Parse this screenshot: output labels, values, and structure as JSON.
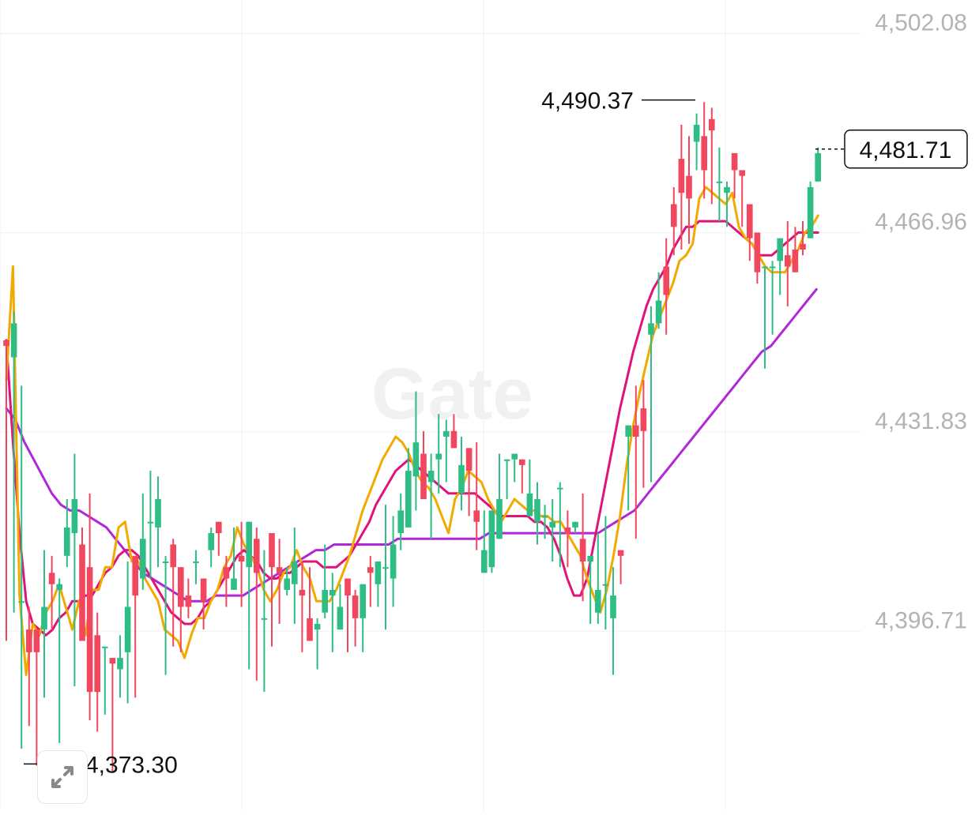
{
  "watermark": "Gate",
  "colors": {
    "up": "#2ebd85",
    "down": "#f0475e",
    "ma_fast": "#f2a900",
    "ma_mid": "#e0137a",
    "ma_slow": "#b026d9",
    "grid": "#f0f0f0",
    "axis_text": "#b3b3b3"
  },
  "icons": {
    "expand": "expand-arrows-icon"
  },
  "chart_data": {
    "type": "candlestick",
    "ylim": [
      4365,
      4508
    ],
    "y_ticks": [
      {
        "value": 4502.08,
        "label": "4,502.08"
      },
      {
        "value": 4466.96,
        "label": "4,466.96"
      },
      {
        "value": 4431.83,
        "label": "4,431.83"
      },
      {
        "value": 4396.71,
        "label": "4,396.71"
      }
    ],
    "high_marker": {
      "value": 4490.37,
      "label": "4,490.37"
    },
    "low_marker": {
      "value": 4373.3,
      "label": "4,373.30"
    },
    "last_price": {
      "value": 4481.71,
      "label": "4,481.71"
    },
    "candles": [
      [
        4448,
        4447,
        4441,
        4395
      ],
      [
        4445,
        4451,
        4453,
        4400
      ],
      [
        4402,
        4402,
        4440,
        4376
      ],
      [
        4397,
        4393,
        4401,
        4380
      ],
      [
        4397,
        4393,
        4392,
        4373
      ],
      [
        4397,
        4401,
        4411,
        4385
      ],
      [
        4407,
        4405,
        4410,
        4397
      ],
      [
        4404,
        4405,
        4406,
        4377
      ],
      [
        4410,
        4415,
        4420,
        4408
      ],
      [
        4414,
        4420,
        4428,
        4387
      ],
      [
        4412,
        4395,
        4415,
        4395
      ],
      [
        4408,
        4386,
        4421,
        4381
      ],
      [
        4396,
        4386,
        4400,
        4379
      ],
      [
        4394,
        4394,
        4388,
        4382
      ],
      [
        4392,
        4391,
        4390,
        4372
      ],
      [
        4390,
        4392,
        4396,
        4385
      ],
      [
        4393,
        4401,
        4409,
        4384
      ],
      [
        4410,
        4403,
        4410,
        4385
      ],
      [
        4406,
        4413,
        4421,
        4404
      ],
      [
        4416,
        4416,
        4425,
        4406
      ],
      [
        4415,
        4420,
        4424,
        4408
      ],
      [
        4409,
        4409,
        4410,
        4389
      ],
      [
        4412,
        4408,
        4413,
        4394
      ],
      [
        4408,
        4401,
        4406,
        4393
      ],
      [
        4403,
        4401,
        4406,
        4399
      ],
      [
        4409,
        4409,
        4411,
        4405
      ],
      [
        4406,
        4402,
        4402,
        4397
      ],
      [
        4411,
        4414,
        4415,
        4408
      ],
      [
        4416,
        4414,
        4411,
        4410
      ],
      [
        4408,
        4406,
        4410,
        4401
      ],
      [
        4404,
        4406,
        4415,
        4404
      ],
      [
        4410,
        4409,
        4416,
        4401
      ],
      [
        4408,
        4416,
        4407,
        4390
      ],
      [
        4413,
        4407,
        4415,
        4388
      ],
      [
        4399,
        4399,
        4411,
        4386
      ],
      [
        4414,
        4408,
        4412,
        4394
      ],
      [
        4408,
        4407,
        4413,
        4398
      ],
      [
        4404,
        4406,
        4408,
        4403
      ],
      [
        4405,
        4409,
        4415,
        4398
      ],
      [
        4404,
        4403,
        4409,
        4393
      ],
      [
        4399,
        4395,
        4408,
        4399
      ],
      [
        4397,
        4398,
        4399,
        4390
      ],
      [
        4400,
        4404,
        4412,
        4399
      ],
      [
        4403,
        4404,
        4407,
        4393
      ],
      [
        4397,
        4401,
        4405,
        4400
      ],
      [
        4406,
        4403,
        4406,
        4393
      ],
      [
        4403,
        4399,
        4404,
        4394
      ],
      [
        4399,
        4405,
        4405,
        4393
      ],
      [
        4408,
        4407,
        4410,
        4401
      ],
      [
        4405,
        4409,
        4409,
        4401
      ],
      [
        4408,
        4408,
        4419,
        4397
      ],
      [
        4406,
        4412,
        4417,
        4401
      ],
      [
        4414,
        4418,
        4421,
        4411
      ],
      [
        4415,
        4425,
        4429,
        4416
      ],
      [
        4424,
        4430,
        4439,
        4418
      ],
      [
        4428,
        4420,
        4432,
        4420
      ],
      [
        4423,
        4425,
        4428,
        4413
      ],
      [
        4427,
        4428,
        4435,
        4421
      ],
      [
        4431,
        4432,
        4434,
        4423
      ],
      [
        4432,
        4429,
        4435,
        4429
      ],
      [
        4421,
        4426,
        4431,
        4418
      ],
      [
        4429,
        4425,
        4428,
        4417
      ],
      [
        4418,
        4416,
        4430,
        4411
      ],
      [
        4407,
        4411,
        4418,
        4407
      ],
      [
        4408,
        4418,
        4418,
        4407
      ],
      [
        4413,
        4420,
        4428,
        4417
      ],
      [
        4427,
        4427,
        4427,
        4420
      ],
      [
        4427,
        4428,
        4428,
        4423
      ],
      [
        4427,
        4426,
        4426,
        4421
      ],
      [
        4417,
        4421,
        4427,
        4417
      ],
      [
        4416,
        4420,
        4423,
        4412
      ],
      [
        4417,
        4417,
        4419,
        4413
      ],
      [
        4415,
        4416,
        4420,
        4409
      ],
      [
        4422,
        4422,
        4423,
        4408
      ],
      [
        4415,
        4414,
        4418,
        4408
      ],
      [
        4415,
        4416,
        4416,
        4414
      ],
      [
        4413,
        4409,
        4421,
        4402
      ],
      [
        4409,
        4410,
        4410,
        4398
      ],
      [
        4400,
        4404,
        4414,
        4398
      ],
      [
        4405,
        4405,
        4417,
        4397
      ],
      [
        4399,
        4403,
        4408,
        4389
      ],
      [
        4411,
        4410,
        4411,
        4405
      ],
      [
        4431,
        4433,
        4433,
        4418
      ],
      [
        4433,
        4431,
        4440,
        4413
      ],
      [
        4436,
        4432,
        4441,
        4422
      ],
      [
        4449,
        4451,
        4454,
        4423
      ],
      [
        4451,
        4455,
        4460,
        4450
      ],
      [
        4461,
        4456,
        4466,
        4449
      ],
      [
        4472,
        4468,
        4475,
        4463
      ],
      [
        4480,
        4474,
        4486,
        4464
      ],
      [
        4477,
        4473,
        4484,
        4465
      ],
      [
        4483,
        4486,
        4488,
        4478
      ],
      [
        4484,
        4478,
        4490,
        4473
      ],
      [
        4487,
        4485,
        4489,
        4472
      ],
      [
        4476,
        4476,
        4482,
        4469
      ],
      [
        4474,
        4475,
        4476,
        4468
      ],
      [
        4481,
        4478,
        4478,
        4473
      ],
      [
        4478,
        4477,
        4478,
        4468
      ],
      [
        4472,
        4466,
        4472,
        4462
      ],
      [
        4467,
        4460,
        4465,
        4458
      ],
      [
        4461,
        4461,
        4458,
        4443
      ],
      [
        4461,
        4461,
        4462,
        4449
      ],
      [
        4462,
        4466,
        4463,
        4456
      ],
      [
        4463,
        4461,
        4469,
        4454
      ],
      [
        4464,
        4460,
        4468,
        4461
      ],
      [
        4465,
        4464,
        4469,
        4463
      ],
      [
        4466,
        4475,
        4476,
        4469
      ],
      [
        4476,
        4481,
        4482,
        4479
      ]
    ],
    "ma_fast": [
      [
        4441,
        4461
      ],
      [
        4403,
        4389
      ],
      [
        4398,
        4396
      ],
      [
        4400,
        4402
      ],
      [
        4405,
        4401
      ],
      [
        4397,
        4402
      ],
      [
        4396,
        4404
      ],
      [
        4404,
        4408
      ],
      [
        4408,
        4415
      ],
      [
        4416,
        4409
      ],
      [
        4409,
        4406
      ],
      [
        4404,
        4402
      ],
      [
        4397,
        4396
      ],
      [
        4395,
        4392
      ],
      [
        4396,
        4399
      ],
      [
        4399,
        4402
      ],
      [
        4404,
        4408
      ],
      [
        4410,
        4415
      ],
      [
        4412,
        4410
      ],
      [
        4408,
        4404
      ],
      [
        4402,
        4404
      ],
      [
        4407,
        4408
      ],
      [
        4411,
        4408
      ],
      [
        4406,
        4402
      ],
      [
        4402,
        4402
      ],
      [
        4404,
        4407
      ],
      [
        4410,
        4414
      ],
      [
        4418,
        4421
      ],
      [
        4424,
        4427
      ],
      [
        4429,
        4431
      ],
      [
        4430,
        4428
      ],
      [
        4425,
        4423
      ],
      [
        4422,
        4420
      ],
      [
        4417,
        4414
      ],
      [
        4420,
        4422
      ],
      [
        4425,
        4424
      ],
      [
        4423,
        4420
      ],
      [
        4418,
        4416
      ],
      [
        4418,
        4420
      ],
      [
        4419,
        4418
      ],
      [
        4418,
        4417
      ],
      [
        4417,
        4416
      ],
      [
        4416,
        4414
      ],
      [
        4412,
        4410
      ],
      [
        4406,
        4403
      ],
      [
        4400,
        4404
      ],
      [
        4410,
        4417
      ],
      [
        4426,
        4433
      ],
      [
        4439,
        4444
      ],
      [
        4449,
        4452
      ],
      [
        4455,
        4458
      ],
      [
        4462,
        4463
      ],
      [
        4465,
        4473
      ],
      [
        4475,
        4474
      ],
      [
        4473,
        4472
      ],
      [
        4474,
        4468
      ],
      [
        4466,
        4465
      ],
      [
        4463,
        4461
      ],
      [
        4460,
        4460
      ],
      [
        4460,
        4462
      ],
      [
        4464,
        4467
      ],
      [
        4468,
        4470
      ]
    ],
    "ma_mid": [
      [
        4448,
        4430
      ],
      [
        4414,
        4402
      ],
      [
        4398,
        4397
      ],
      [
        4396,
        4397
      ],
      [
        4399,
        4400
      ],
      [
        4402,
        4402
      ],
      [
        4403,
        4403
      ],
      [
        4405,
        4407
      ],
      [
        4408,
        4410
      ],
      [
        4411,
        4411
      ],
      [
        4410,
        4408
      ],
      [
        4406,
        4404
      ],
      [
        4402,
        4400
      ],
      [
        4399,
        4398
      ],
      [
        4398,
        4399
      ],
      [
        4401,
        4402
      ],
      [
        4404,
        4406
      ],
      [
        4408,
        4410
      ],
      [
        4411,
        4410
      ],
      [
        4409,
        4407
      ],
      [
        4406,
        4406
      ],
      [
        4407,
        4407
      ],
      [
        4408,
        4409
      ],
      [
        4409,
        4409
      ],
      [
        4408,
        4408
      ],
      [
        4408,
        4409
      ],
      [
        4410,
        4412
      ],
      [
        4414,
        4416
      ],
      [
        4419,
        4421
      ],
      [
        4423,
        4425
      ],
      [
        4426,
        4427
      ],
      [
        4426,
        4425
      ],
      [
        4424,
        4423
      ],
      [
        4422,
        4421
      ],
      [
        4421,
        4421
      ],
      [
        4421,
        4421
      ],
      [
        4420,
        4419
      ],
      [
        4418,
        4417
      ],
      [
        4417,
        4417
      ],
      [
        4417,
        4417
      ],
      [
        4416,
        4416
      ],
      [
        4415,
        4413
      ],
      [
        4410,
        4406
      ],
      [
        4403,
        4403
      ],
      [
        4406,
        4412
      ],
      [
        4418,
        4424
      ],
      [
        4430,
        4436
      ],
      [
        4441,
        4446
      ],
      [
        4450,
        4454
      ],
      [
        4457,
        4459
      ],
      [
        4461,
        4464
      ],
      [
        4466,
        4468
      ],
      [
        4468,
        4469
      ],
      [
        4469,
        4469
      ],
      [
        4469,
        4469
      ],
      [
        4468,
        4467
      ],
      [
        4466,
        4465
      ],
      [
        4463,
        4463
      ],
      [
        4463,
        4464
      ],
      [
        4465,
        4466
      ],
      [
        4467,
        4467
      ],
      [
        4467,
        4467
      ]
    ],
    "ma_slow": [
      [
        4436,
        4434
      ],
      [
        4430,
        4427
      ],
      [
        4424,
        4421
      ],
      [
        4419,
        4418
      ],
      [
        4418,
        4417
      ],
      [
        4416,
        4415
      ],
      [
        4413,
        4411
      ],
      [
        4409,
        4407
      ],
      [
        4406,
        4405
      ],
      [
        4404,
        4403
      ],
      [
        4402,
        4402
      ],
      [
        4402,
        4403
      ],
      [
        4403,
        4403
      ],
      [
        4403,
        4404
      ],
      [
        4405,
        4406
      ],
      [
        4407,
        4408
      ],
      [
        4409,
        4410
      ],
      [
        4411,
        4411
      ],
      [
        4412,
        4412
      ],
      [
        4412,
        4412
      ],
      [
        4412,
        4412
      ],
      [
        4412,
        4413
      ],
      [
        4413,
        4413
      ],
      [
        4413,
        4413
      ],
      [
        4413,
        4413
      ],
      [
        4413,
        4413
      ],
      [
        4413,
        4414
      ],
      [
        4414,
        4414
      ],
      [
        4414,
        4414
      ],
      [
        4414,
        4414
      ],
      [
        4414,
        4414
      ],
      [
        4414,
        4414
      ],
      [
        4414,
        4414
      ],
      [
        4415,
        4416
      ],
      [
        4417,
        4418
      ],
      [
        4420,
        4422
      ],
      [
        4424,
        4426
      ],
      [
        4428,
        4430
      ],
      [
        4432,
        4434
      ],
      [
        4436,
        4438
      ],
      [
        4440,
        4442
      ],
      [
        4444,
        4446
      ],
      [
        4447,
        4449
      ],
      [
        4451,
        4453
      ],
      [
        4455,
        4457
      ]
    ]
  }
}
